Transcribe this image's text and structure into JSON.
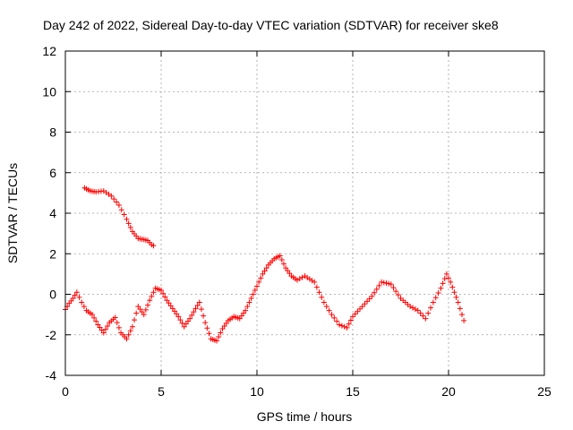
{
  "chart_data": {
    "type": "scatter",
    "title": "Day 242 of 2022, Sidereal Day-to-day VTEC variation (SDTVAR) for receiver ske8",
    "xlabel": "GPS time / hours",
    "ylabel": "SDTVAR / TECUs",
    "xlim": [
      0,
      25
    ],
    "ylim": [
      -4,
      12
    ],
    "xticks": [
      0,
      5,
      10,
      15,
      20,
      25
    ],
    "yticks": [
      -4,
      -2,
      0,
      2,
      4,
      6,
      8,
      10,
      12
    ],
    "grid": true,
    "marker": "plus",
    "series": [
      {
        "name": "SDTVAR",
        "color": "#ff0000",
        "tracks": [
          [
            [
              1.0,
              5.25
            ],
            [
              1.3,
              5.1
            ],
            [
              1.6,
              5.05
            ],
            [
              2.0,
              5.1
            ],
            [
              2.4,
              4.85
            ],
            [
              2.8,
              4.4
            ],
            [
              3.2,
              3.7
            ],
            [
              3.5,
              3.1
            ],
            [
              3.8,
              2.75
            ],
            [
              4.1,
              2.7
            ],
            [
              4.3,
              2.65
            ],
            [
              4.5,
              2.45
            ],
            [
              4.7,
              2.35
            ]
          ],
          [
            [
              0.0,
              -0.75
            ],
            [
              0.2,
              -0.45
            ],
            [
              0.4,
              -0.2
            ],
            [
              0.6,
              0.1
            ],
            [
              0.85,
              -0.4
            ],
            [
              1.1,
              -0.8
            ],
            [
              1.4,
              -1.0
            ],
            [
              1.7,
              -1.5
            ],
            [
              2.0,
              -1.9
            ],
            [
              2.3,
              -1.4
            ],
            [
              2.6,
              -1.15
            ],
            [
              2.9,
              -1.9
            ],
            [
              3.2,
              -2.2
            ],
            [
              3.5,
              -1.6
            ],
            [
              3.8,
              -0.6
            ],
            [
              4.1,
              -1.0
            ],
            [
              4.4,
              -0.3
            ],
            [
              4.7,
              0.3
            ],
            [
              5.0,
              0.2
            ],
            [
              5.3,
              -0.3
            ],
            [
              5.6,
              -0.7
            ],
            [
              5.9,
              -1.1
            ],
            [
              6.2,
              -1.6
            ],
            [
              6.5,
              -1.2
            ],
            [
              6.8,
              -0.7
            ],
            [
              7.0,
              -0.4
            ],
            [
              7.3,
              -1.4
            ],
            [
              7.6,
              -2.2
            ],
            [
              7.9,
              -2.3
            ],
            [
              8.2,
              -1.7
            ],
            [
              8.5,
              -1.3
            ],
            [
              8.8,
              -1.1
            ],
            [
              9.1,
              -1.2
            ],
            [
              9.4,
              -0.8
            ],
            [
              9.7,
              -0.2
            ],
            [
              10.0,
              0.4
            ],
            [
              10.3,
              1.0
            ],
            [
              10.6,
              1.45
            ],
            [
              10.9,
              1.75
            ],
            [
              11.2,
              1.9
            ],
            [
              11.5,
              1.3
            ],
            [
              11.8,
              0.9
            ],
            [
              12.1,
              0.7
            ],
            [
              12.5,
              0.9
            ],
            [
              13.0,
              0.6
            ],
            [
              13.5,
              -0.4
            ],
            [
              13.9,
              -1.0
            ],
            [
              14.3,
              -1.5
            ],
            [
              14.7,
              -1.65
            ],
            [
              15.0,
              -1.1
            ],
            [
              15.5,
              -0.6
            ],
            [
              16.0,
              -0.1
            ],
            [
              16.5,
              0.6
            ],
            [
              17.0,
              0.5
            ],
            [
              17.5,
              -0.2
            ],
            [
              18.0,
              -0.6
            ],
            [
              18.4,
              -0.8
            ],
            [
              18.8,
              -1.2
            ],
            [
              19.2,
              -0.4
            ],
            [
              19.6,
              0.3
            ],
            [
              19.9,
              1.0
            ],
            [
              20.1,
              0.6
            ],
            [
              20.3,
              0.1
            ],
            [
              20.5,
              -0.4
            ],
            [
              20.7,
              -1.0
            ],
            [
              20.9,
              -1.6
            ]
          ]
        ]
      }
    ]
  }
}
